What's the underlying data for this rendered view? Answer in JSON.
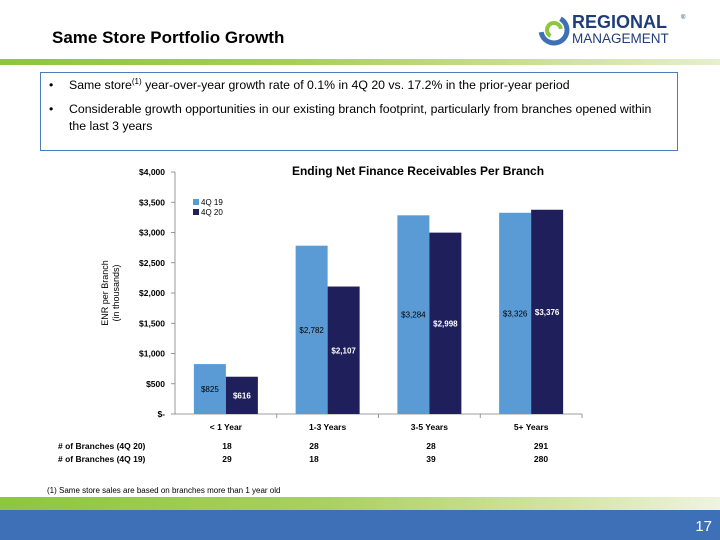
{
  "header": {
    "title": "Same Store Portfolio Growth",
    "logo_text_top": "REGIONAL",
    "logo_text_bottom": "MANAGEMENT",
    "logo_mark": "®"
  },
  "bullets": [
    {
      "text_before": "Same store",
      "superscript": "(1)",
      "text_after": " year-over-year growth rate of 0.1% in 4Q 20 vs. 17.2% in the prior-year period"
    },
    {
      "text_before": "Considerable growth opportunities in our existing branch footprint, particularly from branches opened within the last 3 years",
      "superscript": "",
      "text_after": ""
    }
  ],
  "bullet_symbol": "•",
  "chart_data": {
    "type": "bar",
    "title": "Ending Net Finance Receivables Per Branch",
    "ylabel_line1": "ENR per Branch",
    "ylabel_line2": "(in thousands)",
    "xlabel": "",
    "categories": [
      "< 1 Year",
      "1-3 Years",
      "3-5 Years",
      "5+ Years"
    ],
    "series": [
      {
        "name": "4Q 19",
        "values": [
          825,
          2782,
          3284,
          3326
        ],
        "labels": [
          "$825",
          "$2,782",
          "$3,284",
          "$3,326"
        ],
        "color": "#5b9bd5"
      },
      {
        "name": "4Q 20",
        "values": [
          616,
          2107,
          2998,
          3376
        ],
        "labels": [
          "$616",
          "$2,107",
          "$2,998",
          "$3,376"
        ],
        "color": "#1f1f5c"
      }
    ],
    "ylim": [
      0,
      4000
    ],
    "yticks": [
      0,
      500,
      1000,
      1500,
      2000,
      2500,
      3000,
      3500,
      4000
    ],
    "ytick_labels": [
      "$-",
      "$500",
      "$1,000",
      "$1,500",
      "$2,000",
      "$2,500",
      "$3,000",
      "$3,500",
      "$4,000"
    ],
    "grid": false,
    "legend": "top-left"
  },
  "branch_table": [
    {
      "label": "# of Branches (4Q 20)",
      "values": [
        "18",
        "28",
        "28",
        "291"
      ]
    },
    {
      "label": "# of Branches (4Q 19)",
      "values": [
        "29",
        "18",
        "39",
        "280"
      ]
    }
  ],
  "footnote": "(1) Same store sales are based on branches more than 1 year old",
  "page_number": "17",
  "colors": {
    "accent_green": "#8dc63f",
    "brand_blue": "#3d70b6",
    "box_border": "#4a7ebb"
  }
}
